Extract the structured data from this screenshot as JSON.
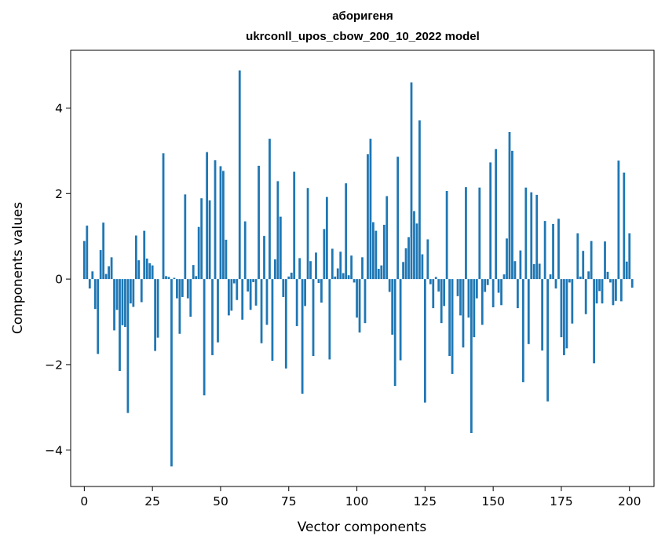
{
  "chart_data": {
    "type": "bar",
    "title_line1": "аборигеня",
    "title_line2": "ukrconll_upos_cbow_200_10_2022 model",
    "xlabel": "Vector components",
    "ylabel": "Components values",
    "xlim": [
      -5,
      209
    ],
    "ylim": [
      -4.85,
      5.35
    ],
    "xticks": [
      0,
      25,
      50,
      75,
      100,
      125,
      150,
      175,
      200
    ],
    "xtick_labels": [
      "0",
      "25",
      "50",
      "75",
      "100",
      "125",
      "150",
      "175",
      "200"
    ],
    "yticks": [
      -4,
      -2,
      0,
      2,
      4
    ],
    "ytick_labels": [
      "−4",
      "−2",
      "0",
      "2",
      "4"
    ],
    "bar_color": "#1f77b4",
    "grid": false,
    "values": [
      0.89,
      1.25,
      -0.22,
      0.18,
      -0.7,
      -1.75,
      0.68,
      1.32,
      0.12,
      0.3,
      0.51,
      -1.2,
      -0.72,
      -2.15,
      -1.08,
      -1.12,
      -3.13,
      -0.57,
      -0.65,
      1.02,
      0.44,
      -0.54,
      1.13,
      0.48,
      0.37,
      0.32,
      -1.68,
      -1.37,
      0.0,
      2.94,
      0.07,
      0.05,
      -4.38,
      0.03,
      -0.45,
      -1.28,
      -0.42,
      1.98,
      -0.45,
      -0.88,
      0.33,
      0.07,
      1.22,
      1.89,
      -2.72,
      2.97,
      1.84,
      -1.78,
      2.78,
      -1.48,
      2.64,
      2.53,
      0.92,
      -0.85,
      -0.74,
      -0.1,
      -0.49,
      4.88,
      -0.95,
      1.35,
      -0.29,
      -0.72,
      -0.07,
      -0.62,
      2.65,
      -1.5,
      1.01,
      -1.07,
      3.28,
      -1.91,
      0.46,
      2.29,
      1.46,
      -0.42,
      -2.09,
      0.06,
      0.15,
      2.51,
      -1.1,
      0.49,
      -2.68,
      -0.63,
      2.13,
      0.42,
      -1.8,
      0.62,
      -0.09,
      -0.55,
      1.17,
      1.92,
      -1.88,
      0.71,
      0.06,
      0.25,
      0.64,
      0.14,
      2.24,
      0.09,
      0.55,
      -0.08,
      -0.9,
      -1.25,
      0.51,
      -1.03,
      2.92,
      3.28,
      1.33,
      1.13,
      0.24,
      0.32,
      1.27,
      1.94,
      -0.3,
      -1.3,
      -2.5,
      2.86,
      -1.9,
      0.4,
      0.72,
      0.98,
      4.6,
      1.59,
      1.3,
      3.71,
      0.58,
      -2.89,
      0.93,
      -0.12,
      -0.68,
      0.05,
      -0.29,
      -1.03,
      -0.63,
      2.06,
      -1.8,
      -2.22,
      0.0,
      -0.4,
      -0.85,
      -1.6,
      2.15,
      -0.9,
      -3.6,
      -1.36,
      -0.45,
      2.14,
      -1.07,
      -0.3,
      -0.14,
      2.73,
      -0.66,
      3.04,
      -0.32,
      -0.61,
      0.11,
      0.95,
      3.44,
      3.0,
      0.42,
      -0.68,
      0.67,
      -2.41,
      2.14,
      -1.52,
      2.03,
      0.35,
      1.97,
      0.36,
      -1.67,
      1.36,
      -2.86,
      0.11,
      1.29,
      -0.22,
      1.41,
      -1.36,
      -1.78,
      -1.62,
      -0.08,
      -1.04,
      0.0,
      1.07,
      0.06,
      0.66,
      -0.82,
      0.18,
      0.89,
      -1.97,
      -0.57,
      -0.28,
      -0.57,
      0.88,
      0.17,
      -0.08,
      -0.61,
      -0.51,
      2.77,
      -0.52,
      2.49,
      0.41,
      1.07,
      -0.2
    ]
  }
}
